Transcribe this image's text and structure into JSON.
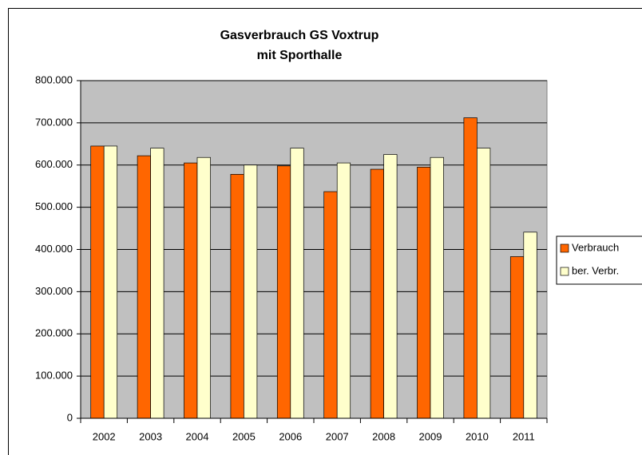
{
  "chart_data": {
    "type": "bar",
    "title": "Gasverbrauch GS Voxtrup",
    "subtitle": "mit Sporthalle",
    "categories": [
      "2002",
      "2003",
      "2004",
      "2005",
      "2006",
      "2007",
      "2008",
      "2009",
      "2010",
      "2011"
    ],
    "series": [
      {
        "name": "Verbrauch",
        "color": "#ff6600",
        "values": [
          645000,
          622000,
          605000,
          578000,
          598000,
          537000,
          590000,
          595000,
          712000,
          383000
        ]
      },
      {
        "name": "ber. Verbr.",
        "color": "#ffffcc",
        "values": [
          645000,
          640000,
          618000,
          600000,
          640000,
          605000,
          625000,
          618000,
          640000,
          441000
        ]
      }
    ],
    "ylim": [
      0,
      800000
    ],
    "yticks": [
      0,
      {
        "value": 100000,
        "label": "100.000"
      },
      {
        "value": 200000,
        "label": "200.000"
      },
      {
        "value": 300000,
        "label": "300.000"
      },
      {
        "value": 400000,
        "label": "400.000"
      },
      {
        "value": 500000,
        "label": "500.000"
      },
      {
        "value": 600000,
        "label": "600.000"
      },
      {
        "value": 700000,
        "label": "700.000"
      },
      {
        "value": 800000,
        "label": "800.000"
      }
    ],
    "grid": true,
    "plot_background": "#c0c0c0",
    "legend": "right"
  }
}
